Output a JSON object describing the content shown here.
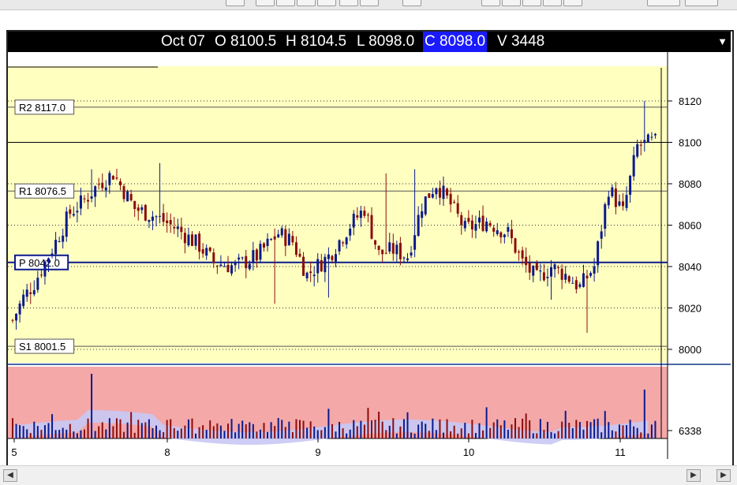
{
  "header": {
    "date": "Oct 07",
    "open": "O 8100.5",
    "high": "H 8104.5",
    "low": "L 8098.0",
    "close": "C 8098.0",
    "volume": "V 3448"
  },
  "colors": {
    "price_bg": "#ffffc0",
    "volume_bg": "#f4a8a8",
    "band_fill": "#c8c8f4",
    "up_bar": "#0b1a8c",
    "down_bar": "#8b0d0d",
    "pivot_line": "#0b1a8c"
  },
  "chart_data": [
    {
      "type": "candlestick",
      "title": "",
      "x_tick_labels": [
        "5",
        "8",
        "9",
        "10",
        "11"
      ],
      "y_ticks": [
        8000,
        8020,
        8040,
        8060,
        8080,
        8100,
        8120
      ],
      "ylim": [
        7995,
        8131
      ],
      "grid": "dotted horizontal",
      "levels": [
        {
          "name": "R2",
          "label": "R2 8117.0",
          "value": 8117.0
        },
        {
          "name": "R1",
          "label": "R1 8076.5",
          "value": 8076.5
        },
        {
          "name": "P",
          "label": "P 8042.0",
          "value": 8042.0
        },
        {
          "name": "S1",
          "label": "S1 8001.5",
          "value": 8001.5
        }
      ],
      "last": {
        "open": 8100.5,
        "high": 8104.5,
        "low": 8098.0,
        "close": 8098.0,
        "volume": 3448
      },
      "anchors": [
        [
          0,
          8014
        ],
        [
          3,
          8025
        ],
        [
          6,
          8032
        ],
        [
          12,
          8052
        ],
        [
          16,
          8066
        ],
        [
          20,
          8072
        ],
        [
          24,
          8080
        ],
        [
          28,
          8085
        ],
        [
          34,
          8068
        ],
        [
          40,
          8064
        ],
        [
          46,
          8058
        ],
        [
          52,
          8050
        ],
        [
          56,
          8042
        ],
        [
          62,
          8040
        ],
        [
          68,
          8045
        ],
        [
          74,
          8056
        ],
        [
          78,
          8052
        ],
        [
          82,
          8036
        ],
        [
          88,
          8045
        ],
        [
          94,
          8060
        ],
        [
          98,
          8068
        ],
        [
          102,
          8046
        ],
        [
          106,
          8048
        ],
        [
          110,
          8045
        ],
        [
          114,
          8070
        ],
        [
          118,
          8080
        ],
        [
          122,
          8070
        ],
        [
          126,
          8058
        ],
        [
          132,
          8062
        ],
        [
          138,
          8056
        ],
        [
          142,
          8042
        ],
        [
          146,
          8034
        ],
        [
          150,
          8040
        ],
        [
          154,
          8036
        ],
        [
          158,
          8030
        ],
        [
          162,
          8040
        ],
        [
          166,
          8078
        ],
        [
          170,
          8066
        ],
        [
          174,
          8098
        ],
        [
          178,
          8100
        ]
      ]
    },
    {
      "type": "bar",
      "title": "",
      "y_tick_labels": [
        "6338"
      ],
      "last_volume": 3448
    }
  ]
}
